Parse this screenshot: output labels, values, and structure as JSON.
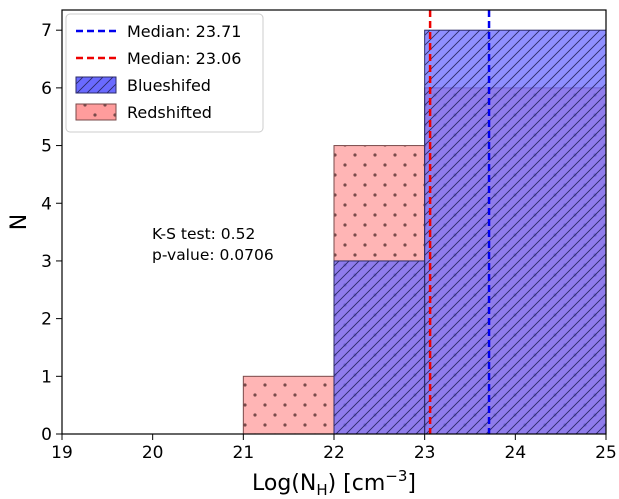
{
  "chart_data": {
    "type": "bar",
    "xlabel_main": "Log(N",
    "xlabel_sub": "H",
    "xlabel_unit": ") [cm",
    "xlabel_exp": "−3",
    "xlabel_close": "]",
    "ylabel": "N",
    "xlim": [
      19,
      25
    ],
    "ylim": [
      0,
      7.35
    ],
    "xticks": [
      19,
      20,
      21,
      22,
      23,
      24,
      25
    ],
    "yticks": [
      0,
      1,
      2,
      3,
      4,
      5,
      6,
      7
    ],
    "bin_edges": [
      19,
      20,
      21,
      22,
      23,
      25
    ],
    "series": [
      {
        "name": "Blueshifed",
        "color": "#6a6aff",
        "hatch": "diagonal",
        "bins": [
          {
            "x0": 22,
            "x1": 23,
            "value": 3
          },
          {
            "x0": 23,
            "x1": 25,
            "value": 7
          }
        ]
      },
      {
        "name": "Redshifted",
        "color": "#ff9c9c",
        "hatch": "dots",
        "bins": [
          {
            "x0": 21,
            "x1": 22,
            "value": 1
          },
          {
            "x0": 22,
            "x1": 23,
            "value": 5
          },
          {
            "x0": 23,
            "x1": 25,
            "value": 6
          }
        ]
      }
    ],
    "medians": [
      {
        "label": "Median: 23.71",
        "value": 23.71,
        "color": "#0000ee"
      },
      {
        "label": "Median: 23.06",
        "value": 23.06,
        "color": "#ee0000"
      }
    ],
    "annotations": {
      "ks": "K-S test: 0.52",
      "pvalue": "p-value: 0.0706"
    },
    "legend_position": "top-left",
    "grid": false
  }
}
